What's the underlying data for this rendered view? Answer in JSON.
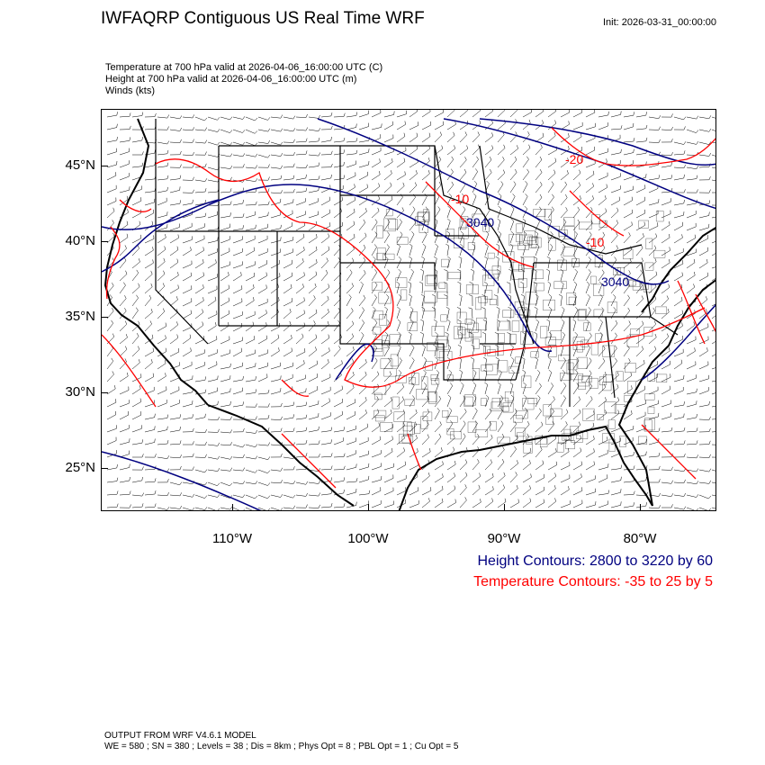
{
  "title": "IWFAQRP Contiguous US Real Time WRF",
  "init": "Init: 2026-03-31_00:00:00",
  "subtitles": [
    "Temperature at 700 hPa valid at 2026-04-06_16:00:00 UTC   (C)",
    "Height at 700 hPa valid at 2026-04-06_16:00:00 UTC   (m)",
    "Winds   (kts)"
  ],
  "lat_labels": [
    "45°N",
    "40°N",
    "35°N",
    "30°N",
    "25°N"
  ],
  "lon_labels": [
    "110°W",
    "100°W",
    "90°W",
    "80°W"
  ],
  "contour_labels": {
    "height": [
      "3040",
      "3040"
    ],
    "temperature": [
      "-20",
      "-10",
      "-10"
    ]
  },
  "legend": {
    "height": "Height Contours: 2800 to 3220 by 60",
    "temperature": "Temperature Contours: -35 to 25 by 5"
  },
  "colors": {
    "height_contours": "#000080",
    "temperature_contours": "#ff0000",
    "boundaries": "#000000",
    "wind_barbs": "#000000"
  },
  "footer": [
    "OUTPUT FROM WRF V4.6.1 MODEL",
    "WE = 580 ; SN = 380 ; Levels = 38 ; Dis = 8km ; Phys Opt = 8 ; PBL Opt = 1 ; Cu Opt = 5"
  ]
}
